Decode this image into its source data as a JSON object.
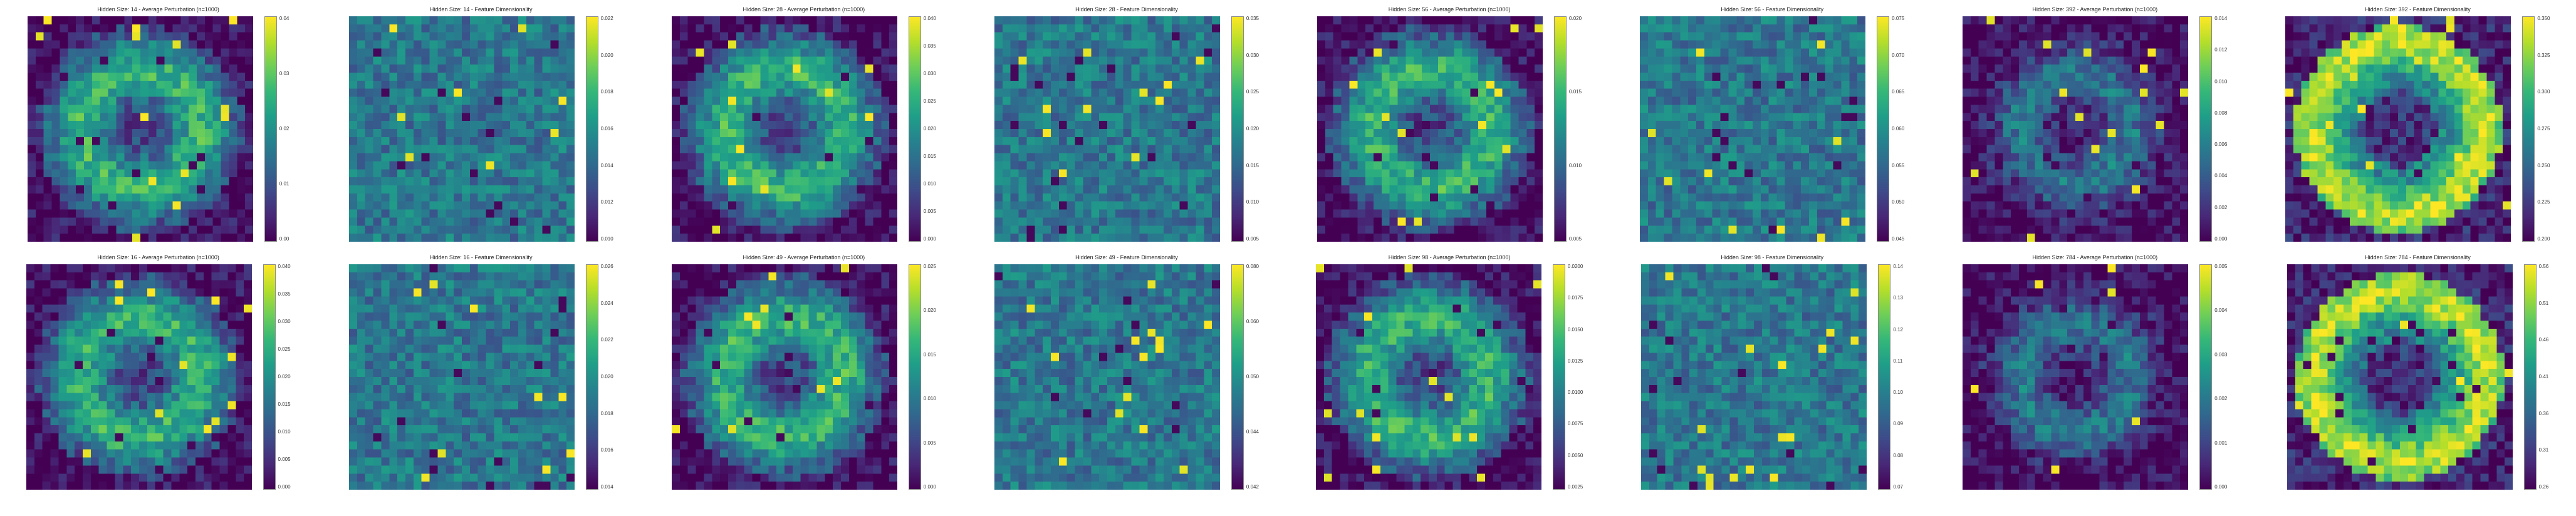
{
  "global": {
    "grid_size": 28,
    "colormap": "viridis",
    "background_color": "#ffffff",
    "title_fontsize": 9,
    "tick_fontsize": 8,
    "cmap_stops": [
      "#440154",
      "#482878",
      "#3e4a89",
      "#31688e",
      "#26828e",
      "#1f9e89",
      "#35b779",
      "#6ece58",
      "#b5de2b",
      "#fde725"
    ]
  },
  "panels": [
    {
      "row": 0,
      "col": 0,
      "title": "Hidden Size: 14 - Average Perturbation (n=1000)",
      "vmin": 0.0,
      "vmax": 0.04,
      "ticks": [
        "0.04",
        "0.03",
        "0.02",
        "0.01",
        "0.00"
      ],
      "seed": 14,
      "pattern": "digit"
    },
    {
      "row": 0,
      "col": 1,
      "title": "Hidden Size: 14 - Feature Dimensionality",
      "vmin": 0.01,
      "vmax": 0.022,
      "ticks": [
        "0.022",
        "0.020",
        "0.018",
        "0.016",
        "0.014",
        "0.012",
        "0.010"
      ],
      "seed": 114,
      "pattern": "noise"
    },
    {
      "row": 0,
      "col": 2,
      "title": "Hidden Size: 28 - Average Perturbation (n=1000)",
      "vmin": 0.0,
      "vmax": 0.04,
      "ticks": [
        "0.040",
        "0.035",
        "0.030",
        "0.025",
        "0.020",
        "0.015",
        "0.010",
        "0.005",
        "0.000"
      ],
      "seed": 28,
      "pattern": "digit"
    },
    {
      "row": 0,
      "col": 3,
      "title": "Hidden Size: 28 - Feature Dimensionality",
      "vmin": 0.005,
      "vmax": 0.035,
      "ticks": [
        "0.035",
        "0.030",
        "0.025",
        "0.020",
        "0.015",
        "0.010",
        "0.005"
      ],
      "seed": 128,
      "pattern": "noise"
    },
    {
      "row": 0,
      "col": 4,
      "title": "Hidden Size: 56 - Average Perturbation (n=1000)",
      "vmin": 0.005,
      "vmax": 0.02,
      "ticks": [
        "0.020",
        "0.015",
        "0.010",
        "0.005"
      ],
      "seed": 56,
      "pattern": "digit"
    },
    {
      "row": 0,
      "col": 5,
      "title": "Hidden Size: 56 - Feature Dimensionality",
      "vmin": 0.045,
      "vmax": 0.075,
      "ticks": [
        "0.075",
        "0.070",
        "0.065",
        "0.060",
        "0.055",
        "0.050",
        "0.045"
      ],
      "seed": 156,
      "pattern": "noise"
    },
    {
      "row": 0,
      "col": 6,
      "title": "Hidden Size: 392 - Average Perturbation (n=1000)",
      "vmin": 0.0,
      "vmax": 0.014,
      "ticks": [
        "0.014",
        "0.012",
        "0.010",
        "0.008",
        "0.006",
        "0.004",
        "0.002",
        "0.000"
      ],
      "seed": 392,
      "pattern": "digit_dark"
    },
    {
      "row": 0,
      "col": 7,
      "title": "Hidden Size: 392 - Feature Dimensionality",
      "vmin": 0.2,
      "vmax": 0.35,
      "ticks": [
        "0.350",
        "0.325",
        "0.300",
        "0.275",
        "0.250",
        "0.225",
        "0.200"
      ],
      "seed": 1392,
      "pattern": "ring"
    },
    {
      "row": 1,
      "col": 0,
      "title": "Hidden Size: 16 - Average Perturbation (n=1000)",
      "vmin": 0.0,
      "vmax": 0.04,
      "ticks": [
        "0.040",
        "0.035",
        "0.030",
        "0.025",
        "0.020",
        "0.015",
        "0.010",
        "0.005",
        "0.000"
      ],
      "seed": 16,
      "pattern": "digit"
    },
    {
      "row": 1,
      "col": 1,
      "title": "Hidden Size: 16 - Feature Dimensionality",
      "vmin": 0.014,
      "vmax": 0.026,
      "ticks": [
        "0.026",
        "0.024",
        "0.022",
        "0.020",
        "0.018",
        "0.016",
        "0.014"
      ],
      "seed": 116,
      "pattern": "noise"
    },
    {
      "row": 1,
      "col": 2,
      "title": "Hidden Size: 49 - Average Perturbation (n=1000)",
      "vmin": 0.0,
      "vmax": 0.025,
      "ticks": [
        "0.025",
        "0.020",
        "0.015",
        "0.010",
        "0.005",
        "0.000"
      ],
      "seed": 49,
      "pattern": "digit"
    },
    {
      "row": 1,
      "col": 3,
      "title": "Hidden Size: 49 - Feature Dimensionality",
      "vmin": 0.042,
      "vmax": 0.08,
      "ticks": [
        "0.080",
        "0.060",
        "0.050",
        "0.044",
        "0.042"
      ],
      "seed": 149,
      "pattern": "noise"
    },
    {
      "row": 1,
      "col": 4,
      "title": "Hidden Size: 98 - Average Perturbation (n=1000)",
      "vmin": 0.0025,
      "vmax": 0.02,
      "ticks": [
        "0.0200",
        "0.0175",
        "0.0150",
        "0.0125",
        "0.0100",
        "0.0075",
        "0.0050",
        "0.0025"
      ],
      "seed": 98,
      "pattern": "digit"
    },
    {
      "row": 1,
      "col": 5,
      "title": "Hidden Size: 98 - Feature Dimensionality",
      "vmin": 0.07,
      "vmax": 0.14,
      "ticks": [
        "0.14",
        "0.13",
        "0.12",
        "0.11",
        "0.10",
        "0.09",
        "0.08",
        "0.07"
      ],
      "seed": 198,
      "pattern": "noise"
    },
    {
      "row": 1,
      "col": 6,
      "title": "Hidden Size: 784 - Average Perturbation (n=1000)",
      "vmin": 0.0,
      "vmax": 0.005,
      "ticks": [
        "0.005",
        "0.004",
        "0.003",
        "0.002",
        "0.001",
        "0.000"
      ],
      "seed": 784,
      "pattern": "digit_dark"
    },
    {
      "row": 1,
      "col": 7,
      "title": "Hidden Size: 784 - Feature Dimensionality",
      "vmin": 0.26,
      "vmax": 0.56,
      "ticks": [
        "0.56",
        "0.51",
        "0.46",
        "0.41",
        "0.36",
        "0.31",
        "0.26"
      ],
      "seed": 1784,
      "pattern": "ring"
    }
  ]
}
